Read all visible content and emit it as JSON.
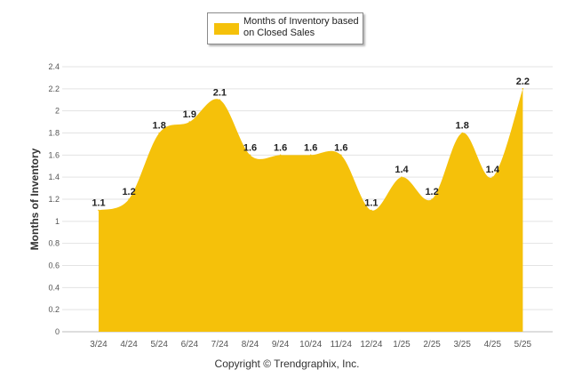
{
  "chart_data": {
    "type": "area",
    "categories": [
      "3/24",
      "4/24",
      "5/24",
      "6/24",
      "7/24",
      "8/24",
      "9/24",
      "10/24",
      "11/24",
      "12/24",
      "1/25",
      "2/25",
      "3/25",
      "4/25",
      "5/25"
    ],
    "series": [
      {
        "name": "Months of Inventory based on Closed Sales",
        "values": [
          1.1,
          1.2,
          1.8,
          1.9,
          2.1,
          1.6,
          1.6,
          1.6,
          1.6,
          1.1,
          1.4,
          1.2,
          1.8,
          1.4,
          2.2
        ],
        "data_labels": [
          "1.1",
          "1.2",
          "1.8",
          "1.9",
          "2.1",
          "1.6",
          "1.6",
          "1.6",
          "1.6",
          "1.1",
          "1.4",
          "1.2",
          "1.8",
          "1.4",
          "2.2"
        ]
      }
    ],
    "ylabel": "Months of Inventory",
    "xlabel": "",
    "ylim": [
      0,
      2.4
    ],
    "yticks": [
      "0",
      "0.2",
      "0.4",
      "0.6",
      "0.8",
      "1",
      "1.2",
      "1.4",
      "1.6",
      "1.8",
      "2",
      "2.2",
      "2.4"
    ],
    "grid": true,
    "legend_position": "top",
    "colors": {
      "fill": "#F5C10A",
      "grid": "#e3e3e3",
      "axis_text": "#555555",
      "label": "#222222"
    }
  },
  "footer": {
    "copyright": "Copyright © Trendgraphix, Inc."
  }
}
